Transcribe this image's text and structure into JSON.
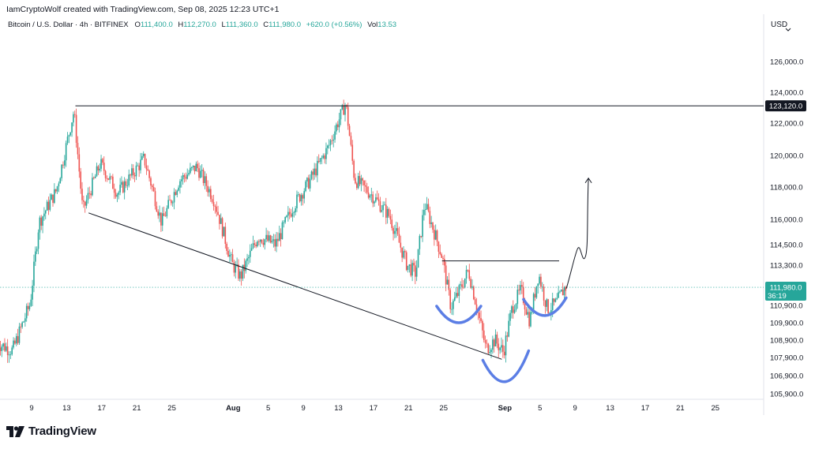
{
  "header": {
    "author_line": "IamCryptoWolf created with TradingView.com, Sep 08, 2025 12:23 UTC+1",
    "symbol": "Bitcoin / U.S. Dollar · 4h · BITFINEX",
    "open_label": "O",
    "open": "111,400.0",
    "high_label": "H",
    "high": "112,270.0",
    "low_label": "L",
    "low": "111,360.0",
    "close_label": "C",
    "close": "111,980.0",
    "change": "+620.0 (+0.56%)",
    "vol_label": "Vol",
    "vol": "13.53"
  },
  "currency": "USD",
  "brand": {
    "name": "TradingView"
  },
  "colors": {
    "up": "#26a69a",
    "down": "#ef5350",
    "last_price": "#26a69a",
    "level_tag": "#131722",
    "drawing": "#131722",
    "pattern": "#5b7ee5"
  },
  "chart_data": {
    "type": "candlestick",
    "title": "Bitcoin / U.S. Dollar · 4h · BITFINEX",
    "x_ticks": [
      "9",
      "13",
      "17",
      "21",
      "25",
      "Aug",
      "5",
      "9",
      "13",
      "17",
      "21",
      "25",
      "Sep",
      "5",
      "9",
      "13",
      "17",
      "21",
      "25"
    ],
    "y_ticks": [
      "126,000.0",
      "124,000.0",
      "122,000.0",
      "120,000.0",
      "118,000.0",
      "116,000.0",
      "114,500.0",
      "113,300.0",
      "110,900.0",
      "109,900.0",
      "108,900.0",
      "107,900.0",
      "106,900.0",
      "105,900.0"
    ],
    "ylim": [
      105500,
      127500
    ],
    "last_price": {
      "value": 111980,
      "label": "111,980.0",
      "countdown": "36:19"
    },
    "resistance_level": {
      "value": 123120,
      "label": "123,120.0"
    },
    "approx_path": [
      {
        "date": "Jul 5",
        "price": 108800
      },
      {
        "date": "Jul 7",
        "price": 108300
      },
      {
        "date": "Jul 9",
        "price": 111000
      },
      {
        "date": "Jul 10",
        "price": 115800
      },
      {
        "date": "Jul 12",
        "price": 117800
      },
      {
        "date": "Jul 14",
        "price": 122800
      },
      {
        "date": "Jul 15",
        "price": 116500
      },
      {
        "date": "Jul 17",
        "price": 119500
      },
      {
        "date": "Jul 19",
        "price": 117600
      },
      {
        "date": "Jul 22",
        "price": 119800
      },
      {
        "date": "Jul 24",
        "price": 115800
      },
      {
        "date": "Jul 26",
        "price": 118400
      },
      {
        "date": "Jul 28",
        "price": 119300
      },
      {
        "date": "Jul 30",
        "price": 117200
      },
      {
        "date": "Aug 1",
        "price": 113400
      },
      {
        "date": "Aug 2",
        "price": 112600
      },
      {
        "date": "Aug 4",
        "price": 115000
      },
      {
        "date": "Aug 6",
        "price": 114500
      },
      {
        "date": "Aug 8",
        "price": 116800
      },
      {
        "date": "Aug 10",
        "price": 118500
      },
      {
        "date": "Aug 12",
        "price": 120500
      },
      {
        "date": "Aug 14",
        "price": 123300
      },
      {
        "date": "Aug 15",
        "price": 118500
      },
      {
        "date": "Aug 17",
        "price": 117500
      },
      {
        "date": "Aug 19",
        "price": 116200
      },
      {
        "date": "Aug 21",
        "price": 113300
      },
      {
        "date": "Aug 22",
        "price": 112800
      },
      {
        "date": "Aug 23",
        "price": 117000
      },
      {
        "date": "Aug 25",
        "price": 113800
      },
      {
        "date": "Aug 26",
        "price": 110800
      },
      {
        "date": "Aug 27",
        "price": 111800
      },
      {
        "date": "Aug 28",
        "price": 113000
      },
      {
        "date": "Aug 30",
        "price": 108400
      },
      {
        "date": "Aug 31",
        "price": 108900
      },
      {
        "date": "Sep 1",
        "price": 108200
      },
      {
        "date": "Sep 2",
        "price": 110800
      },
      {
        "date": "Sep 3",
        "price": 111800
      },
      {
        "date": "Sep 4",
        "price": 110000
      },
      {
        "date": "Sep 5",
        "price": 112800
      },
      {
        "date": "Sep 6",
        "price": 110700
      },
      {
        "date": "Sep 7",
        "price": 111000
      },
      {
        "date": "Sep 8",
        "price": 111980
      }
    ]
  }
}
